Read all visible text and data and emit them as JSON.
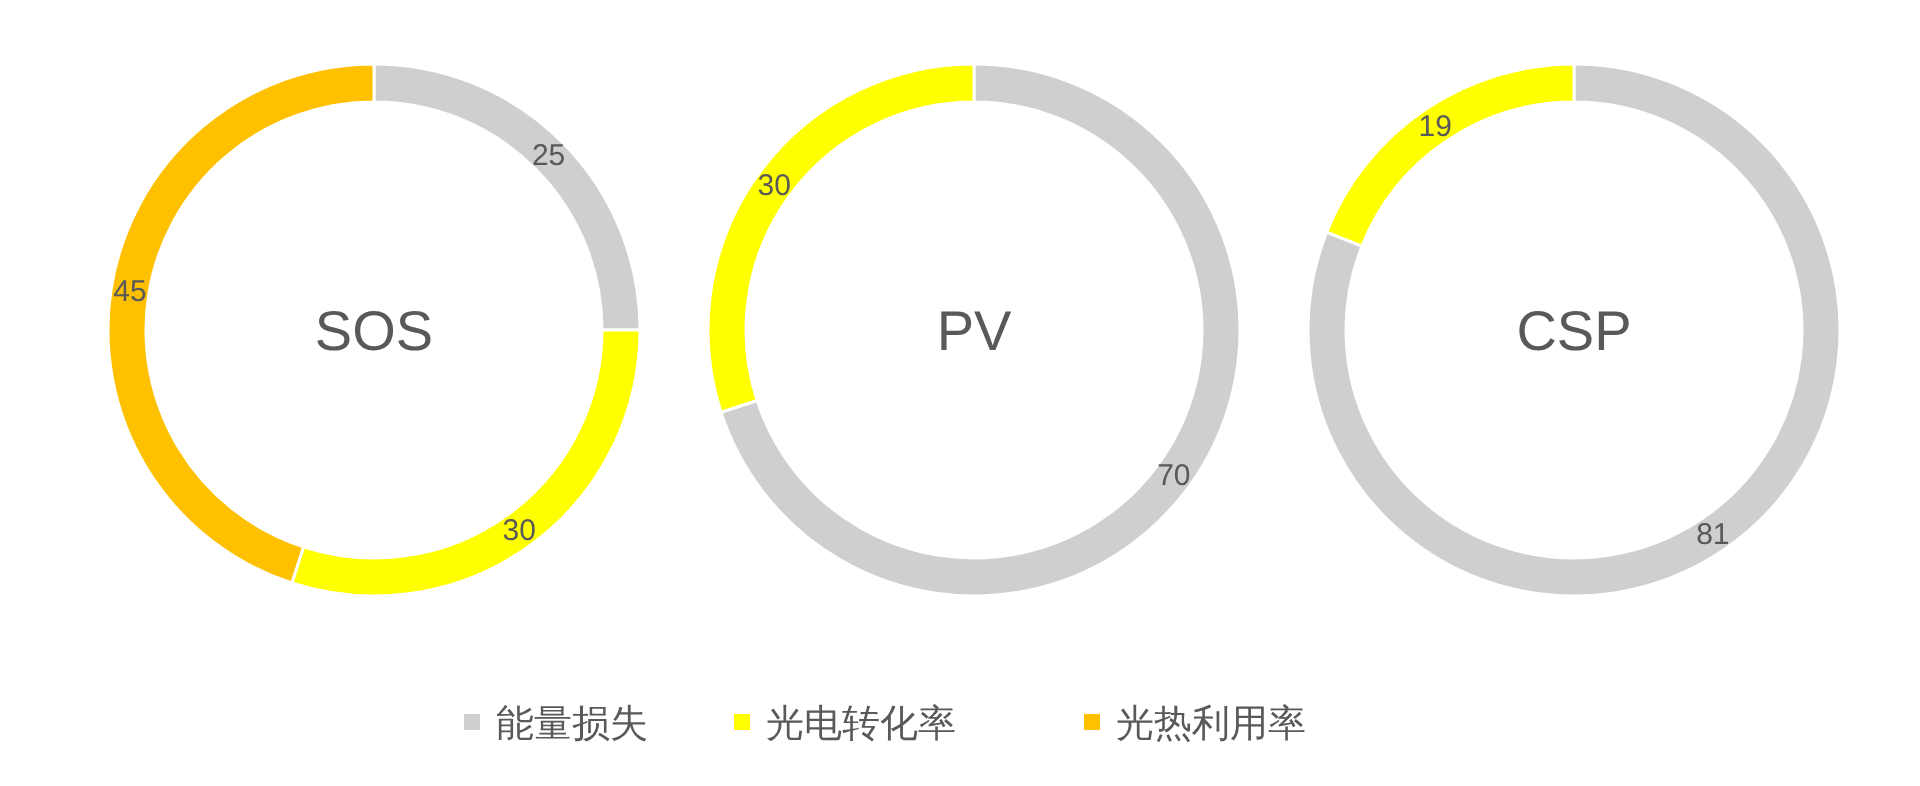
{
  "chart_data": [
    {
      "type": "donut",
      "title": "SOS",
      "categories": [
        "能量损失",
        "光电转化率",
        "光热利用率"
      ],
      "values": [
        25,
        30,
        45
      ],
      "colors": [
        "#d0cece",
        "#ffff00",
        "#ffc000"
      ],
      "data_labels": true,
      "legend": "bottom"
    },
    {
      "type": "donut",
      "title": "PV",
      "categories": [
        null,
        null
      ],
      "values": [
        70,
        30
      ],
      "colors": [
        "#d0cece",
        "#ffff00"
      ],
      "data_labels": true
    },
    {
      "type": "donut",
      "title": "CSP",
      "categories": [
        null,
        null
      ],
      "values": [
        81,
        19
      ],
      "colors": [
        "#d0cece",
        "#ffff00"
      ],
      "data_labels": true
    }
  ]
}
